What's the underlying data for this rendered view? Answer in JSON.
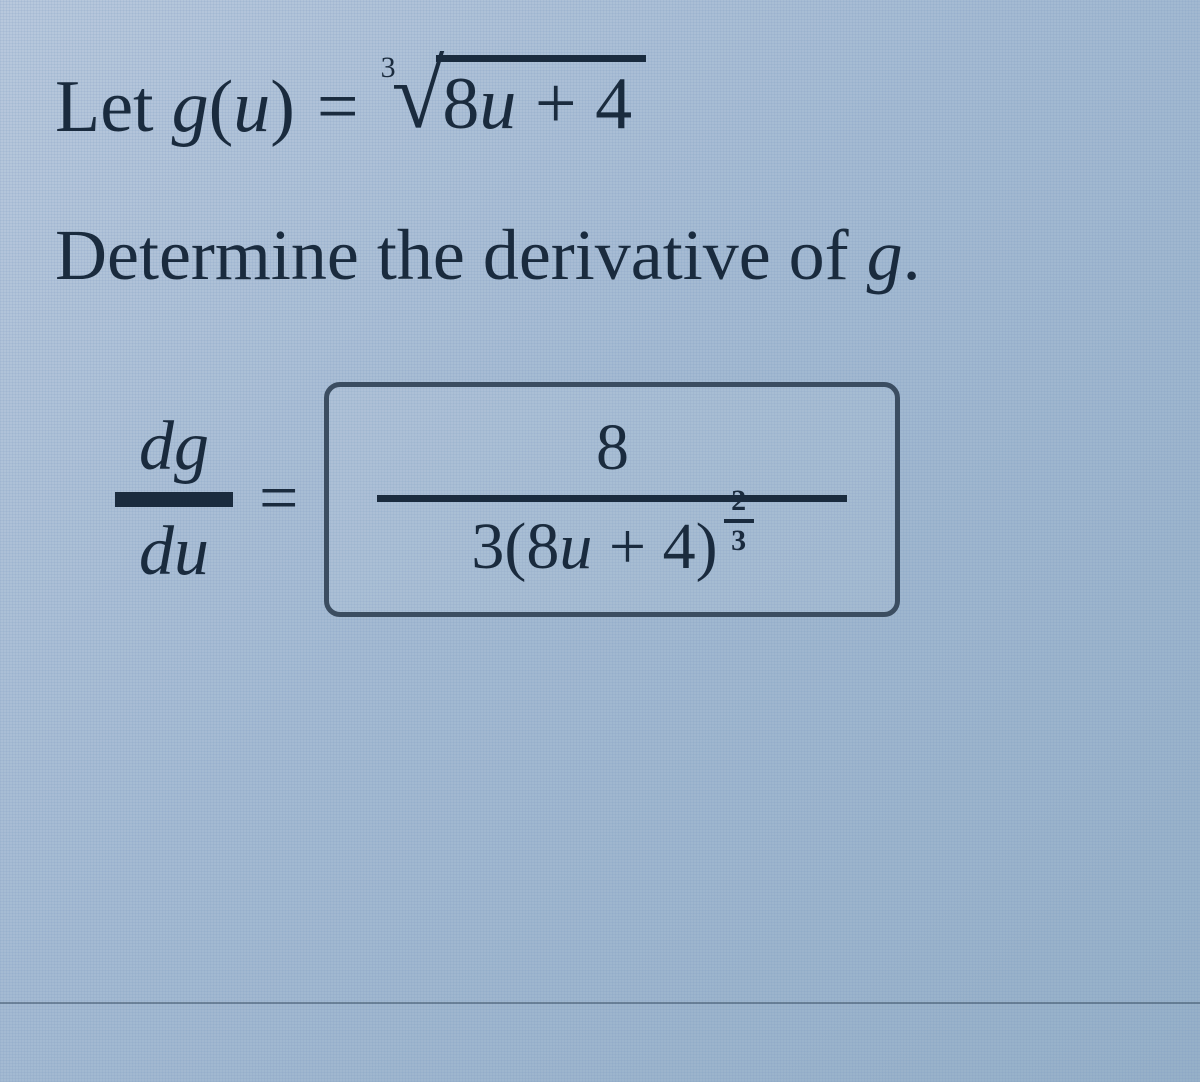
{
  "problem": {
    "let_word": "Let",
    "func_name": "g",
    "func_arg": "u",
    "equals": "=",
    "root_index": "3",
    "radicand_coeff": "8",
    "radicand_var": "u",
    "radicand_op": "+",
    "radicand_const": "4"
  },
  "prompt": {
    "pre": "Determine the derivative of ",
    "fn": "g",
    "post": "."
  },
  "answer": {
    "lhs_top": "dg",
    "lhs_bot": "du",
    "equals": "=",
    "numerator": "8",
    "den_coeff": "3",
    "den_open": "(",
    "den_a": "8",
    "den_var": "u",
    "den_op": "+",
    "den_b": "4",
    "den_close": ")",
    "exp_top": "2",
    "exp_bot": "3"
  },
  "style": {
    "text_color": "#1a2b3e",
    "box_border": "#3b4d61",
    "bg_grad_a": "#b8c8dc",
    "bg_grad_b": "#96b0c8"
  }
}
